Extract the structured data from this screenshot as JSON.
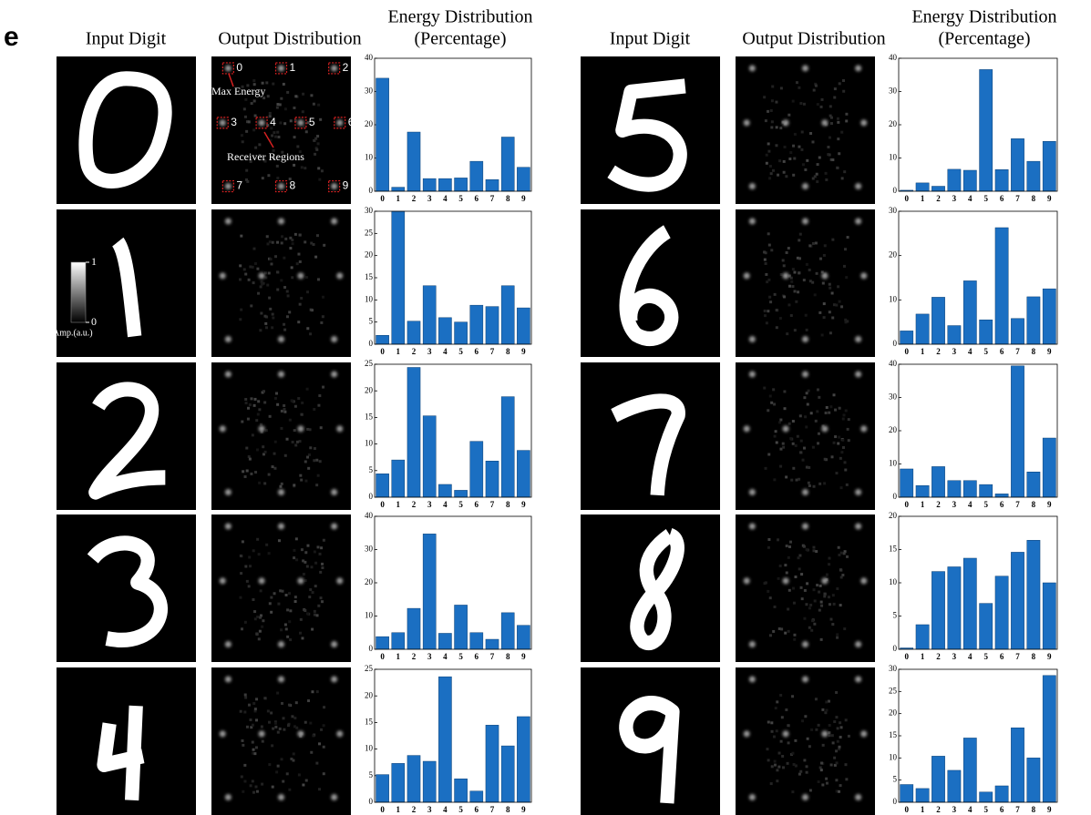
{
  "panel_label": "e",
  "headers": [
    {
      "input": "Input Digit",
      "output": "Output Distribution",
      "energy": [
        "Energy Distribution",
        "(Percentage)"
      ]
    },
    {
      "input": "Input Digit",
      "output": "Output Distribution",
      "energy": [
        "Energy Distribution",
        "(Percentage)"
      ]
    }
  ],
  "annotations": {
    "regions": [
      "0",
      "1",
      "2",
      "3",
      "4",
      "5",
      "6",
      "7",
      "8",
      "9"
    ],
    "max_energy": "Max Energy",
    "receiver_regions": "Receiver Regions"
  },
  "colorbar": {
    "label": "Amp.(a.u.)",
    "ticks": [
      0,
      1
    ]
  },
  "chart_data": [
    {
      "type": "bar",
      "categories": [
        "0",
        "1",
        "2",
        "3",
        "4",
        "5",
        "6",
        "7",
        "8",
        "9"
      ],
      "values": [
        34,
        1.2,
        17.8,
        3.8,
        3.8,
        4,
        9,
        3.5,
        16.3,
        7.2
      ],
      "ylim": [
        0,
        40
      ],
      "yticks": [
        0,
        10,
        20,
        30,
        40
      ],
      "color": "#1b6fc2"
    },
    {
      "type": "bar",
      "categories": [
        "0",
        "1",
        "2",
        "3",
        "4",
        "5",
        "6",
        "7",
        "8",
        "9"
      ],
      "values": [
        2,
        30,
        5.2,
        13.2,
        6,
        5,
        8.8,
        8.5,
        13.2,
        8.2
      ],
      "ylim": [
        0,
        30
      ],
      "yticks": [
        0,
        5,
        10,
        15,
        20,
        25,
        30
      ],
      "color": "#1b6fc2"
    },
    {
      "type": "bar",
      "categories": [
        "0",
        "1",
        "2",
        "3",
        "4",
        "5",
        "6",
        "7",
        "8",
        "9"
      ],
      "values": [
        4.4,
        7,
        24.4,
        15.3,
        2.4,
        1.3,
        10.5,
        6.8,
        18.9,
        8.8
      ],
      "ylim": [
        0,
        25
      ],
      "yticks": [
        0,
        5,
        10,
        15,
        20,
        25
      ],
      "color": "#1b6fc2"
    },
    {
      "type": "bar",
      "categories": [
        "0",
        "1",
        "2",
        "3",
        "4",
        "5",
        "6",
        "7",
        "8",
        "9"
      ],
      "values": [
        3.8,
        5,
        12.3,
        34.7,
        4.8,
        13.3,
        5,
        3,
        11,
        7.2
      ],
      "ylim": [
        0,
        40
      ],
      "yticks": [
        0,
        10,
        20,
        30,
        40
      ],
      "color": "#1b6fc2"
    },
    {
      "type": "bar",
      "categories": [
        "0",
        "1",
        "2",
        "3",
        "4",
        "5",
        "6",
        "7",
        "8",
        "9"
      ],
      "values": [
        5.2,
        7.3,
        8.8,
        7.7,
        23.6,
        4.4,
        2.1,
        14.5,
        10.6,
        16.1
      ],
      "ylim": [
        0,
        25
      ],
      "yticks": [
        0,
        5,
        10,
        15,
        20,
        25
      ],
      "color": "#1b6fc2"
    },
    {
      "type": "bar",
      "categories": [
        "0",
        "1",
        "2",
        "3",
        "4",
        "5",
        "6",
        "7",
        "8",
        "9"
      ],
      "values": [
        0.3,
        2.5,
        1.5,
        6.6,
        6.3,
        36.6,
        6.5,
        15.8,
        9,
        15
      ],
      "ylim": [
        0,
        40
      ],
      "yticks": [
        0,
        10,
        20,
        30,
        40
      ],
      "color": "#1b6fc2"
    },
    {
      "type": "bar",
      "categories": [
        "0",
        "1",
        "2",
        "3",
        "4",
        "5",
        "6",
        "7",
        "8",
        "9"
      ],
      "values": [
        3,
        6.8,
        10.6,
        4.2,
        14.3,
        5.5,
        26.3,
        5.8,
        10.7,
        12.5
      ],
      "ylim": [
        0,
        30
      ],
      "yticks": [
        0,
        10,
        20,
        30
      ],
      "color": "#1b6fc2"
    },
    {
      "type": "bar",
      "categories": [
        "0",
        "1",
        "2",
        "3",
        "4",
        "5",
        "6",
        "7",
        "8",
        "9"
      ],
      "values": [
        8.5,
        3.5,
        9.2,
        5,
        5,
        3.8,
        1,
        39.5,
        7.6,
        17.8
      ],
      "ylim": [
        0,
        40
      ],
      "yticks": [
        0,
        10,
        20,
        30,
        40
      ],
      "color": "#1b6fc2"
    },
    {
      "type": "bar",
      "categories": [
        "0",
        "1",
        "2",
        "3",
        "4",
        "5",
        "6",
        "7",
        "8",
        "9"
      ],
      "values": [
        0.2,
        3.7,
        11.7,
        12.4,
        13.7,
        6.9,
        11,
        14.6,
        16.4,
        10
      ],
      "ylim": [
        0,
        20
      ],
      "yticks": [
        0,
        5,
        10,
        15,
        20
      ],
      "color": "#1b6fc2"
    },
    {
      "type": "bar",
      "categories": [
        "0",
        "1",
        "2",
        "3",
        "4",
        "5",
        "6",
        "7",
        "8",
        "9"
      ],
      "values": [
        4,
        3.1,
        10.4,
        7.2,
        14.5,
        2.3,
        3.7,
        16.8,
        10,
        28.6
      ],
      "ylim": [
        0,
        30
      ],
      "yticks": [
        0,
        5,
        10,
        15,
        20,
        25,
        30
      ],
      "color": "#1b6fc2"
    }
  ]
}
